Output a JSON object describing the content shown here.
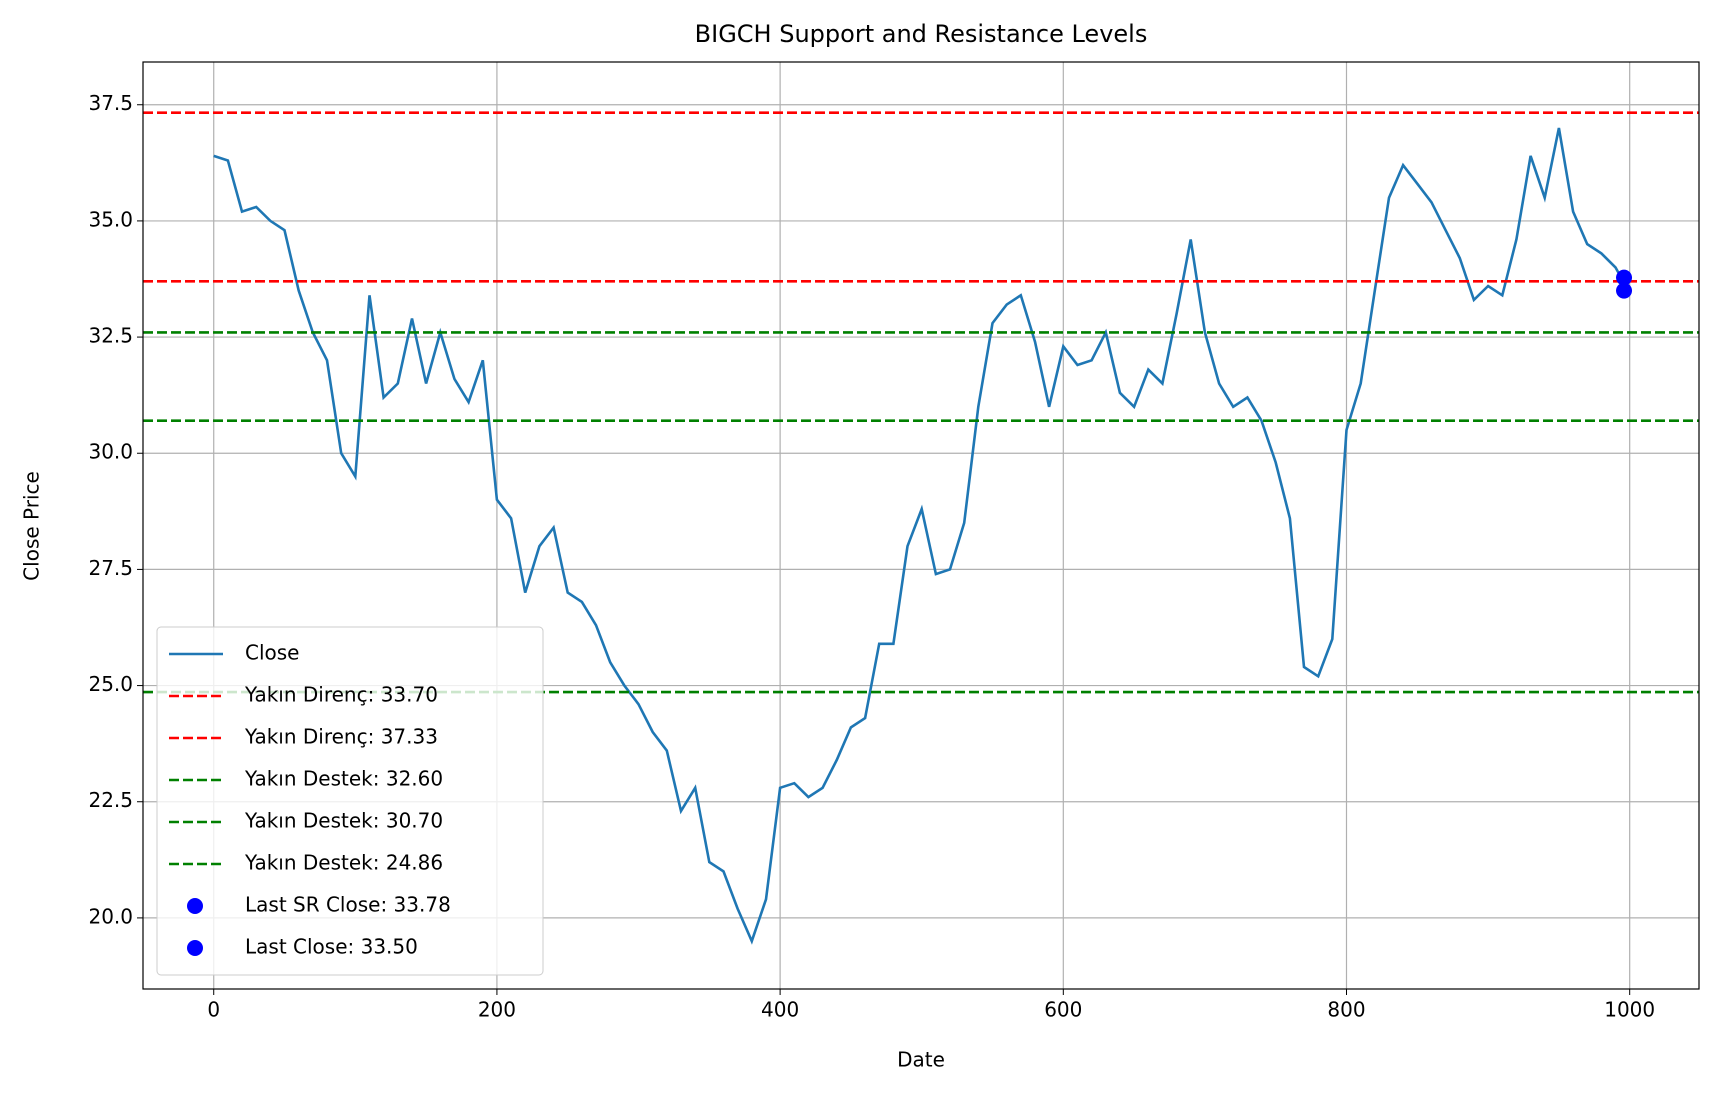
{
  "chart_data": {
    "type": "line",
    "title": "BIGCH Support and Resistance Levels",
    "x_label": "Date",
    "y_label": "Close Price",
    "x": [
      0,
      10,
      20,
      30,
      40,
      50,
      60,
      70,
      80,
      90,
      100,
      110,
      120,
      130,
      140,
      150,
      160,
      170,
      180,
      190,
      200,
      210,
      220,
      230,
      240,
      250,
      260,
      270,
      280,
      290,
      300,
      310,
      320,
      330,
      340,
      350,
      360,
      370,
      380,
      390,
      400,
      410,
      420,
      430,
      440,
      450,
      460,
      470,
      480,
      490,
      500,
      510,
      520,
      530,
      540,
      550,
      560,
      570,
      580,
      590,
      600,
      610,
      620,
      630,
      640,
      650,
      660,
      670,
      680,
      690,
      700,
      710,
      720,
      730,
      740,
      750,
      760,
      770,
      780,
      790,
      800,
      810,
      820,
      830,
      840,
      850,
      860,
      870,
      880,
      890,
      900,
      910,
      920,
      930,
      940,
      950,
      960,
      970,
      980,
      990,
      999
    ],
    "series": [
      {
        "name": "Close",
        "color": "#1f77b4",
        "values": [
          36.4,
          36.3,
          35.2,
          35.3,
          35.0,
          34.8,
          33.5,
          32.6,
          32.0,
          30.0,
          29.5,
          33.4,
          31.2,
          31.5,
          32.9,
          31.5,
          32.6,
          31.6,
          31.1,
          32.0,
          29.0,
          28.6,
          27.0,
          28.0,
          28.4,
          27.0,
          26.8,
          26.3,
          25.5,
          25.0,
          24.6,
          24.0,
          23.6,
          22.3,
          22.8,
          21.2,
          21.0,
          20.2,
          19.5,
          20.4,
          22.8,
          22.9,
          22.6,
          22.8,
          23.4,
          24.1,
          24.3,
          25.9,
          25.9,
          28.0,
          28.8,
          27.4,
          27.5,
          28.5,
          31.0,
          32.8,
          33.2,
          33.4,
          32.4,
          31.0,
          32.3,
          31.9,
          32.0,
          32.6,
          31.3,
          31.0,
          31.8,
          31.5,
          33.0,
          34.6,
          32.6,
          31.5,
          31.0,
          31.2,
          30.7,
          29.8,
          28.6,
          25.4,
          25.2,
          26.0,
          30.5,
          31.5,
          33.5,
          35.5,
          36.2,
          35.8,
          35.4,
          34.8,
          34.2,
          33.3,
          33.6,
          33.4,
          34.6,
          36.4,
          35.5,
          37.0,
          35.2,
          34.5,
          34.3,
          34.0,
          33.5
        ]
      }
    ],
    "hlines": [
      {
        "name": "Yakın Direnç: 33.70",
        "color": "#ff0000",
        "value": 33.7
      },
      {
        "name": "Yakın Direnç: 37.33",
        "color": "#ff0000",
        "value": 37.33
      },
      {
        "name": "Yakın Destek: 32.60",
        "color": "#008000",
        "value": 32.6
      },
      {
        "name": "Yakın Destek: 30.70",
        "color": "#008000",
        "value": 30.7
      },
      {
        "name": "Yakın Destek: 24.86",
        "color": "#008000",
        "value": 24.86
      }
    ],
    "points": [
      {
        "name": "Last SR Close: 33.78",
        "color": "#0000ff",
        "x": 996,
        "y": 33.78
      },
      {
        "name": "Last Close: 33.50",
        "color": "#0000ff",
        "x": 996,
        "y": 33.5
      }
    ],
    "xlim": [
      -49.95,
      1048.95
    ],
    "ylim": [
      18.47,
      38.42
    ],
    "xticks": [
      0,
      200,
      400,
      600,
      800,
      1000
    ],
    "yticks": [
      {
        "value": 20,
        "label": "20.0"
      },
      22.5,
      {
        "value": 25,
        "label": "25.0"
      },
      27.5,
      {
        "value": 30,
        "label": "30.0"
      },
      32.5,
      {
        "value": 35,
        "label": "35.0"
      },
      37.5
    ],
    "grid": true,
    "legend": "lower left"
  }
}
